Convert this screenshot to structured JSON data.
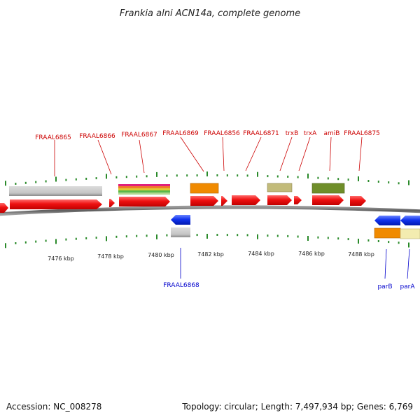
{
  "title": "Frankia alni ACN14a, complete genome",
  "footer": {
    "accession": "Accession: NC_008278",
    "summary": "Topology: circular; Length: 7,497,934 bp; Genes: 6,769"
  },
  "colors": {
    "forward_cds": "#ee1111",
    "reverse_cds": "#1133ee",
    "backbone": "#777777",
    "tick": "#2a8a2a",
    "label_forward": "#cc0000",
    "label_reverse": "#0000cc"
  },
  "axis": {
    "unit": "kbp",
    "tick_labels": [
      "7476 kbp",
      "7478 kbp",
      "7480 kbp",
      "7482 kbp",
      "7484 kbp",
      "7486 kbp",
      "7488 kbp"
    ]
  },
  "gene_labels_forward": [
    "FRAAL6865",
    "FRAAL6866",
    "FRAAL6867",
    "FRAAL6869",
    "FRAAL6856",
    "FRAAL6871",
    "trxB",
    "trxA",
    "amiB",
    "FRAAL6875"
  ],
  "gene_labels_reverse": [
    "FRAAL6868",
    "parB",
    "parA"
  ],
  "feature_colors": {
    "rna_gray": "#c8c8c8",
    "orange": "#f08a00",
    "khaki": "#c2bb7a",
    "olive": "#6f8e2a",
    "light_yellow": "#f3ecb0",
    "multi_stripe": [
      "#e0207a",
      "#f07a2a",
      "#e0c830",
      "#5ab84a",
      "#b0d890"
    ]
  }
}
